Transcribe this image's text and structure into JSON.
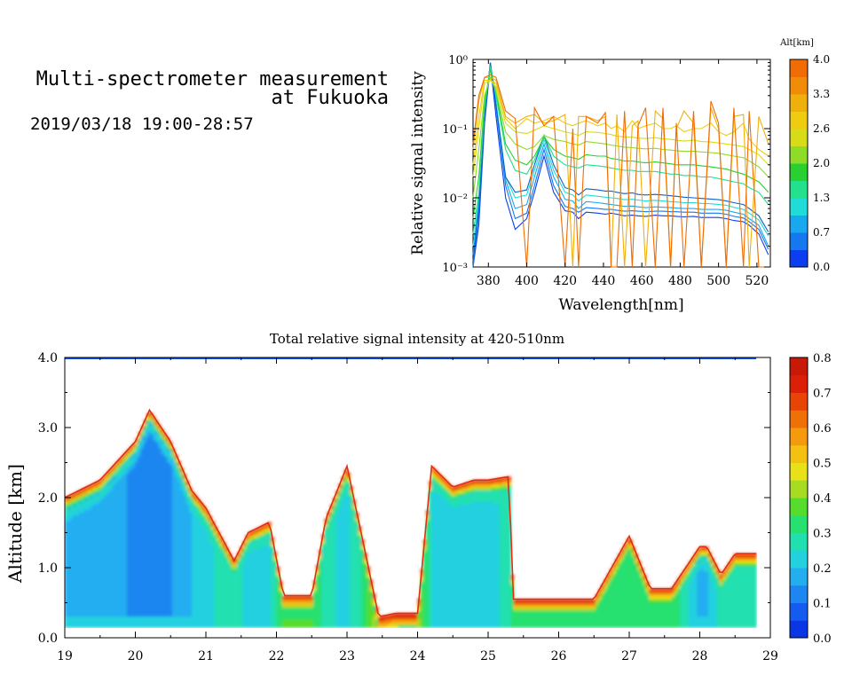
{
  "header": {
    "title_line1": "Multi-spectrometer measurement",
    "title_line2": "at Fukuoka",
    "datetime": "2019/03/18 19:00-28:57"
  },
  "chart_data": [
    {
      "type": "line",
      "xlabel": "Wavelength[nm]",
      "ylabel": "Relative signal intensity",
      "y_scale": "log",
      "xlim": [
        372,
        527
      ],
      "ylim": [
        0.001,
        1
      ],
      "x_ticks": [
        380,
        400,
        420,
        440,
        460,
        480,
        500,
        520
      ],
      "y_ticks": [
        {
          "value": 1,
          "label": "10⁰"
        },
        {
          "value": 0.1,
          "label": "10⁻¹"
        },
        {
          "value": 0.01,
          "label": "10⁻²"
        },
        {
          "value": 0.001,
          "label": "10⁻³"
        }
      ],
      "x": [
        372,
        375,
        378,
        381,
        384,
        389,
        394,
        400,
        404,
        409,
        414,
        420,
        424,
        427,
        431,
        437,
        441,
        444,
        447,
        451,
        455,
        458,
        462,
        467,
        471,
        475,
        478,
        482,
        487,
        491,
        496,
        500,
        504,
        508,
        513,
        516,
        521,
        526
      ],
      "colorbar": {
        "title": "Alt[km]",
        "ticks": [
          "0.0",
          "0.7",
          "1.3",
          "2.0",
          "2.6",
          "3.3",
          "4.0"
        ],
        "colors": [
          "#0a3ef0",
          "#1478f0",
          "#18a8f0",
          "#20dcd8",
          "#22e08c",
          "#28d030",
          "#8edc28",
          "#d8dc18",
          "#f0cc10",
          "#f0b00c",
          "#f08c08",
          "#f06c04"
        ]
      },
      "series": [
        {
          "color": "#0a3ef0",
          "values": [
            0.001,
            0.004,
            0.12,
            0.85,
            0.15,
            0.01,
            0.0035,
            0.005,
            0.012,
            0.04,
            0.012,
            0.0065,
            0.0062,
            0.005,
            0.0062,
            0.006,
            0.0058,
            0.006,
            0.0058,
            0.0055,
            0.0056,
            0.0055,
            0.0054,
            0.0056,
            0.0055,
            0.0055,
            0.0054,
            0.0053,
            0.0054,
            0.0052,
            0.0052,
            0.0052,
            0.005,
            0.0047,
            0.0045,
            0.004,
            0.003,
            0.0015
          ]
        },
        {
          "color": "#1478f0",
          "values": [
            0.001,
            0.006,
            0.14,
            0.9,
            0.2,
            0.015,
            0.005,
            0.006,
            0.015,
            0.05,
            0.015,
            0.0075,
            0.007,
            0.0062,
            0.0072,
            0.007,
            0.0068,
            0.0068,
            0.0066,
            0.0064,
            0.0065,
            0.0064,
            0.0063,
            0.0064,
            0.0064,
            0.0063,
            0.0063,
            0.0062,
            0.0062,
            0.006,
            0.006,
            0.006,
            0.0058,
            0.0054,
            0.0051,
            0.0045,
            0.0035,
            0.0018
          ]
        },
        {
          "color": "#18a8f0",
          "values": [
            0.0015,
            0.008,
            0.15,
            0.9,
            0.22,
            0.018,
            0.007,
            0.008,
            0.02,
            0.06,
            0.02,
            0.0095,
            0.009,
            0.007,
            0.0088,
            0.0085,
            0.0082,
            0.008,
            0.0078,
            0.0075,
            0.0076,
            0.0074,
            0.0072,
            0.0074,
            0.0073,
            0.0072,
            0.0071,
            0.007,
            0.007,
            0.0068,
            0.0068,
            0.0068,
            0.0066,
            0.0062,
            0.0058,
            0.005,
            0.004,
            0.002
          ]
        },
        {
          "color": "#20dcd8",
          "values": [
            0.002,
            0.01,
            0.16,
            0.9,
            0.25,
            0.02,
            0.01,
            0.011,
            0.025,
            0.07,
            0.025,
            0.012,
            0.011,
            0.009,
            0.011,
            0.0105,
            0.0102,
            0.01,
            0.0098,
            0.0094,
            0.0095,
            0.0093,
            0.009,
            0.0092,
            0.009,
            0.0088,
            0.0087,
            0.0085,
            0.0085,
            0.0083,
            0.0082,
            0.008,
            0.0078,
            0.0073,
            0.0068,
            0.006,
            0.0048,
            0.0028
          ]
        },
        {
          "color": "#1060c8",
          "values": [
            0.0012,
            0.007,
            0.14,
            0.9,
            0.22,
            0.02,
            0.012,
            0.013,
            0.03,
            0.08,
            0.03,
            0.014,
            0.013,
            0.011,
            0.0135,
            0.013,
            0.0125,
            0.0125,
            0.012,
            0.0115,
            0.0118,
            0.0112,
            0.011,
            0.0112,
            0.011,
            0.0107,
            0.0105,
            0.0102,
            0.01,
            0.0098,
            0.0096,
            0.0094,
            0.009,
            0.0085,
            0.008,
            0.007,
            0.0055,
            0.0032
          ]
        },
        {
          "color": "#22e08c",
          "values": [
            0.003,
            0.012,
            0.2,
            0.8,
            0.3,
            0.05,
            0.025,
            0.022,
            0.035,
            0.08,
            0.04,
            0.03,
            0.028,
            0.027,
            0.03,
            0.029,
            0.028,
            0.027,
            0.026,
            0.025,
            0.025,
            0.024,
            0.024,
            0.024,
            0.023,
            0.022,
            0.022,
            0.021,
            0.021,
            0.02,
            0.02,
            0.019,
            0.018,
            0.017,
            0.016,
            0.014,
            0.012,
            0.008
          ]
        },
        {
          "color": "#28d030",
          "values": [
            0.005,
            0.02,
            0.25,
            0.7,
            0.35,
            0.06,
            0.035,
            0.03,
            0.04,
            0.075,
            0.05,
            0.04,
            0.038,
            0.036,
            0.042,
            0.04,
            0.04,
            0.037,
            0.036,
            0.034,
            0.034,
            0.033,
            0.032,
            0.033,
            0.032,
            0.031,
            0.03,
            0.03,
            0.03,
            0.029,
            0.028,
            0.027,
            0.026,
            0.024,
            0.022,
            0.02,
            0.017,
            0.012
          ]
        },
        {
          "color": "#8edc28",
          "values": [
            0.01,
            0.05,
            0.3,
            0.55,
            0.35,
            0.09,
            0.06,
            0.05,
            0.055,
            0.08,
            0.07,
            0.065,
            0.06,
            0.058,
            0.065,
            0.062,
            0.06,
            0.058,
            0.056,
            0.054,
            0.053,
            0.052,
            0.051,
            0.052,
            0.05,
            0.049,
            0.048,
            0.047,
            0.047,
            0.046,
            0.045,
            0.044,
            0.042,
            0.04,
            0.038,
            0.034,
            0.028,
            0.02
          ]
        },
        {
          "color": "#d8dc18",
          "values": [
            0.02,
            0.1,
            0.45,
            0.5,
            0.4,
            0.12,
            0.09,
            0.085,
            0.095,
            0.11,
            0.1,
            0.09,
            0.085,
            0.08,
            0.09,
            0.088,
            0.085,
            0.082,
            0.078,
            0.076,
            0.075,
            0.073,
            0.072,
            0.074,
            0.071,
            0.07,
            0.068,
            0.066,
            0.068,
            0.065,
            0.064,
            0.062,
            0.06,
            0.058,
            0.055,
            0.05,
            0.042,
            0.03
          ]
        },
        {
          "color": "#f0cc10",
          "values": [
            0.03,
            0.15,
            0.5,
            0.5,
            0.45,
            0.14,
            0.1,
            0.14,
            0.12,
            0.13,
            0.15,
            0.12,
            0.11,
            0.12,
            0.13,
            0.11,
            0.12,
            0.1,
            0.11,
            0.09,
            0.13,
            0.1,
            0.11,
            0.12,
            0.1,
            0.1,
            0.11,
            0.09,
            0.1,
            0.1,
            0.12,
            0.09,
            0.08,
            0.09,
            0.12,
            0.07,
            0.05,
            0.04
          ]
        },
        {
          "color": "#f0b00c",
          "values": [
            0.05,
            0.25,
            0.55,
            0.55,
            0.5,
            0.15,
            0.12,
            0.15,
            0.16,
            0.12,
            0.13,
            0.16,
            0.001,
            0.15,
            0.15,
            0.13,
            0.15,
            0.001,
            0.16,
            0.001,
            0.11,
            0.13,
            0.001,
            0.18,
            0.14,
            0.001,
            0.1,
            0.18,
            0.12,
            0.001,
            0.2,
            0.1,
            0.001,
            0.15,
            0.16,
            0.001,
            0.15,
            0.06
          ]
        },
        {
          "color": "#f06c04",
          "values": [
            0.06,
            0.3,
            0.55,
            0.6,
            0.55,
            0.18,
            0.14,
            0.001,
            0.2,
            0.11,
            0.15,
            0.001,
            0.1,
            0.001,
            0.15,
            0.12,
            0.17,
            0.001,
            0.001,
            0.18,
            0.001,
            0.11,
            0.2,
            0.001,
            0.2,
            0.001,
            0.12,
            0.001,
            0.18,
            0.001,
            0.25,
            0.12,
            0.001,
            0.2,
            0.001,
            0.18,
            0.001,
            0.001
          ]
        }
      ]
    },
    {
      "type": "heatmap",
      "title": "Total relative signal intensity at 420-510nm",
      "ylabel": "Altitude [km]",
      "xlim": [
        19,
        29
      ],
      "ylim": [
        0,
        4
      ],
      "x_ticks": [
        "19",
        "20",
        "21",
        "22",
        "23",
        "24",
        "25",
        "26",
        "27",
        "28",
        "29"
      ],
      "y_ticks": [
        "0.0",
        "1.0",
        "2.0",
        "3.0",
        "4.0"
      ],
      "colorbar": {
        "range": [
          0,
          0.8
        ],
        "ticks": [
          "0.0",
          "0.1",
          "0.2",
          "0.3",
          "0.4",
          "0.5",
          "0.6",
          "0.7",
          "0.8"
        ],
        "colors": [
          "#0a36e6",
          "#145cf0",
          "#1e86f0",
          "#24aef0",
          "#22d0e0",
          "#20e0b0",
          "#26e070",
          "#56dc2c",
          "#a8dc22",
          "#e8e018",
          "#f4c012",
          "#f49a0c",
          "#f07008",
          "#e84406",
          "#dc2008",
          "#c81808"
        ]
      },
      "top_time": [
        19.0,
        19.5,
        20.0,
        20.2,
        20.5,
        20.8,
        21.0,
        21.4,
        21.6,
        21.9,
        22.1,
        22.5,
        22.7,
        23.0,
        23.2,
        23.45,
        23.7,
        24.0,
        24.2,
        24.5,
        24.8,
        25.0,
        25.3,
        25.35,
        26.0,
        26.5,
        27.0,
        27.3,
        27.6,
        28.0,
        28.1,
        28.3,
        28.5,
        28.8
      ],
      "top_altitude_km": [
        2.0,
        2.25,
        2.8,
        3.25,
        2.8,
        2.1,
        1.85,
        1.1,
        1.5,
        1.65,
        0.6,
        0.6,
        1.7,
        2.45,
        1.5,
        0.3,
        0.35,
        0.35,
        2.45,
        2.15,
        2.25,
        2.25,
        2.3,
        0.55,
        0.55,
        0.55,
        1.45,
        0.7,
        0.7,
        1.3,
        1.3,
        0.9,
        1.2,
        1.2
      ],
      "bottom_altitude_km": 0.15,
      "core_intensity": [
        0.2,
        0.18,
        0.14,
        0.12,
        0.15,
        0.2,
        0.24,
        0.28,
        0.22,
        0.24,
        0.36,
        0.36,
        0.26,
        0.24,
        0.3,
        0.45,
        0.45,
        0.45,
        0.24,
        0.22,
        0.24,
        0.24,
        0.26,
        0.34,
        0.32,
        0.34,
        0.3,
        0.34,
        0.34,
        0.18,
        0.2,
        0.28,
        0.28,
        0.28
      ]
    }
  ]
}
